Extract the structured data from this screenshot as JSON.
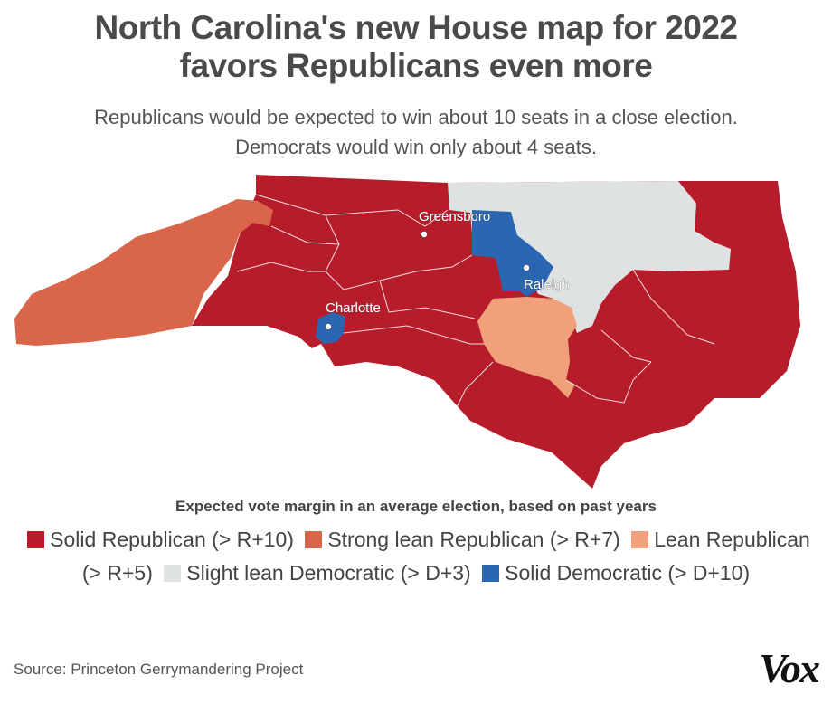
{
  "title_line1": "North Carolina's new House map for 2022",
  "title_line2": "favors Republicans even more",
  "subtitle_line1": "Republicans would be expected to win about 10 seats in a close election.",
  "subtitle_line2": "Democrats would win only about 4 seats.",
  "colors": {
    "solid_republican": "#b71c2b",
    "strong_lean_republican": "#d9664a",
    "lean_republican": "#f0a07a",
    "slight_lean_democratic": "#dfe2e2",
    "solid_democratic": "#2a66b1"
  },
  "cities": {
    "greensboro": "Greensboro",
    "raleigh": "Raleigh",
    "charlotte": "Charlotte"
  },
  "legend": {
    "title": "Expected vote margin in an average election, based on past years",
    "items": [
      "Solid Republican (> R+10)",
      "Strong lean Republican (> R+7)",
      "Lean Republican (> R+5)",
      "Slight lean Democratic (> D+3)",
      "Solid Democratic (> D+10)"
    ]
  },
  "source": "Source: Princeton Gerrymandering Project",
  "logo": "Vox"
}
